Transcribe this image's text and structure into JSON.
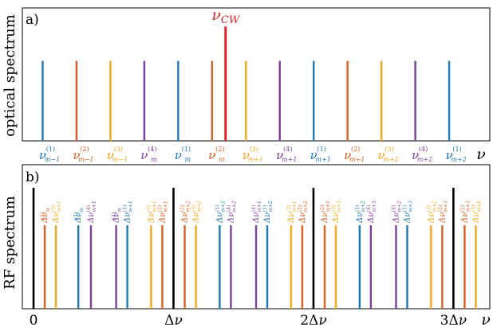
{
  "colors": {
    "blue": "#1f77b4",
    "orange": "#d95f1e",
    "yellow": "#f2a81d",
    "purple": "#7e3f98",
    "red": "#e02020",
    "black": "#000000"
  },
  "chart_data": [
    {
      "type": "bar",
      "panel_label": "a)",
      "ylabel": "optical spectrum",
      "x_axis_symbol": "ν",
      "cw_label": "ν_CW",
      "cw": {
        "x": 5.4,
        "height": 1.0
      },
      "lines_height": 0.7,
      "lines": [
        {
          "x": 0,
          "color": "blue",
          "base": "ν",
          "sup": "(1)",
          "sub": "m−1"
        },
        {
          "x": 1,
          "color": "orange",
          "base": "ν",
          "sup": "(2)",
          "sub": "m−1"
        },
        {
          "x": 2,
          "color": "yellow",
          "base": "ν",
          "sup": "(3)",
          "sub": "m−1"
        },
        {
          "x": 3,
          "color": "purple",
          "base": "ν",
          "sup": "(4)",
          "sub": "m"
        },
        {
          "x": 4,
          "color": "blue",
          "base": "ν",
          "sup": "(1)",
          "sub": "m"
        },
        {
          "x": 5,
          "color": "orange",
          "base": "ν",
          "sup": "(2)",
          "sub": "m"
        },
        {
          "x": 6,
          "color": "yellow",
          "base": "ν",
          "sup": "(3)",
          "sub": "m+1"
        },
        {
          "x": 7,
          "color": "purple",
          "base": "ν",
          "sup": "(4)",
          "sub": "m+1"
        },
        {
          "x": 8,
          "color": "blue",
          "base": "ν",
          "sup": "(1)",
          "sub": "m+1"
        },
        {
          "x": 9,
          "color": "orange",
          "base": "ν",
          "sup": "(2)",
          "sub": "m+1"
        },
        {
          "x": 10,
          "color": "yellow",
          "base": "ν",
          "sup": "(3)",
          "sub": "m+2"
        },
        {
          "x": 11,
          "color": "purple",
          "base": "ν",
          "sup": "(4)",
          "sub": "m+2"
        },
        {
          "x": 12,
          "color": "blue",
          "base": "ν",
          "sup": "(1)",
          "sub": "m+2"
        }
      ],
      "xlim": [
        -0.6,
        13.2
      ]
    },
    {
      "type": "bar",
      "panel_label": "b)",
      "ylabel": "RF spectrum",
      "x_axis_symbol": "ν",
      "ticks": [
        {
          "x": 0,
          "label": "0"
        },
        {
          "x": 1,
          "label": "Δν"
        },
        {
          "x": 2,
          "label": "2Δν"
        },
        {
          "x": 3,
          "label": "3Δν"
        }
      ],
      "xlim": [
        -0.08,
        3.26
      ],
      "ylim": [
        0,
        1
      ],
      "black_lines": [
        {
          "x": 0,
          "height": 1.0
        },
        {
          "x": 1,
          "height": 1.0
        },
        {
          "x": 2,
          "height": 1.0
        },
        {
          "x": 3,
          "height": 1.0
        }
      ],
      "lines_height": 0.69,
      "lines": [
        {
          "x": 0.08,
          "color": "orange",
          "base": "Δν",
          "sup": "(2)",
          "sub": "m"
        },
        {
          "x": 0.16,
          "color": "yellow",
          "base": "Δν",
          "sup": "(3)",
          "sub": "m+1"
        },
        {
          "x": 0.32,
          "color": "blue",
          "base": "Δν",
          "sup": "(1)",
          "sub": "m"
        },
        {
          "x": 0.41,
          "color": "purple",
          "base": "Δν",
          "sup": "(4)",
          "sub": "m+1"
        },
        {
          "x": 0.59,
          "color": "purple",
          "base": "Δν",
          "sup": "(4)",
          "sub": "m"
        },
        {
          "x": 0.67,
          "color": "blue",
          "base": "Δν",
          "sup": "(1)",
          "sub": "m+1"
        },
        {
          "x": 0.84,
          "color": "yellow",
          "base": "Δν",
          "sup": "(3)",
          "sub": "m+1"
        },
        {
          "x": 0.92,
          "color": "orange",
          "base": "Δν",
          "sup": "(2)",
          "sub": "m+1"
        },
        {
          "x": 1.08,
          "color": "orange",
          "base": "Δν",
          "sup": "(2)",
          "sub": "m+2"
        },
        {
          "x": 1.16,
          "color": "yellow",
          "base": "Δν",
          "sup": "(3)",
          "sub": "m+2"
        },
        {
          "x": 1.33,
          "color": "blue",
          "base": "Δν",
          "sup": "(1)",
          "sub": "m+2"
        },
        {
          "x": 1.41,
          "color": "purple",
          "base": "Δν",
          "sup": "(4)",
          "sub": "m+2"
        },
        {
          "x": 1.59,
          "color": "purple",
          "base": "Δν",
          "sup": "(4)",
          "sub": "m+1"
        },
        {
          "x": 1.67,
          "color": "blue",
          "base": "Δν",
          "sup": "(1)",
          "sub": "m+2"
        },
        {
          "x": 1.84,
          "color": "yellow",
          "base": "Δν",
          "sup": "(3)",
          "sub": "m+1"
        },
        {
          "x": 1.92,
          "color": "orange",
          "base": "Δν",
          "sup": "(2)",
          "sub": "m+2"
        },
        {
          "x": 2.08,
          "color": "orange",
          "base": "Δν",
          "sup": "(2)",
          "sub": "m+2"
        },
        {
          "x": 2.16,
          "color": "yellow",
          "base": "Δν",
          "sup": "(3)",
          "sub": "m+3"
        },
        {
          "x": 2.33,
          "color": "blue",
          "base": "Δν",
          "sup": "(1)",
          "sub": "m+2"
        },
        {
          "x": 2.41,
          "color": "purple",
          "base": "Δν",
          "sup": "(4)",
          "sub": "m+3"
        },
        {
          "x": 2.59,
          "color": "purple",
          "base": "Δν",
          "sup": "(4)",
          "sub": "m+2"
        },
        {
          "x": 2.67,
          "color": "blue",
          "base": "Δν",
          "sup": "(1)",
          "sub": "m+3"
        },
        {
          "x": 2.84,
          "color": "yellow",
          "base": "Δν",
          "sup": "(3)",
          "sub": "m+2"
        },
        {
          "x": 2.92,
          "color": "orange",
          "base": "Δν",
          "sup": "(2)",
          "sub": "m+3"
        },
        {
          "x": 3.08,
          "color": "orange",
          "base": "Δν",
          "sup": "(2)",
          "sub": "m+3"
        },
        {
          "x": 3.16,
          "color": "yellow",
          "base": "Δν",
          "sup": "(3)",
          "sub": "m+4"
        }
      ]
    }
  ]
}
